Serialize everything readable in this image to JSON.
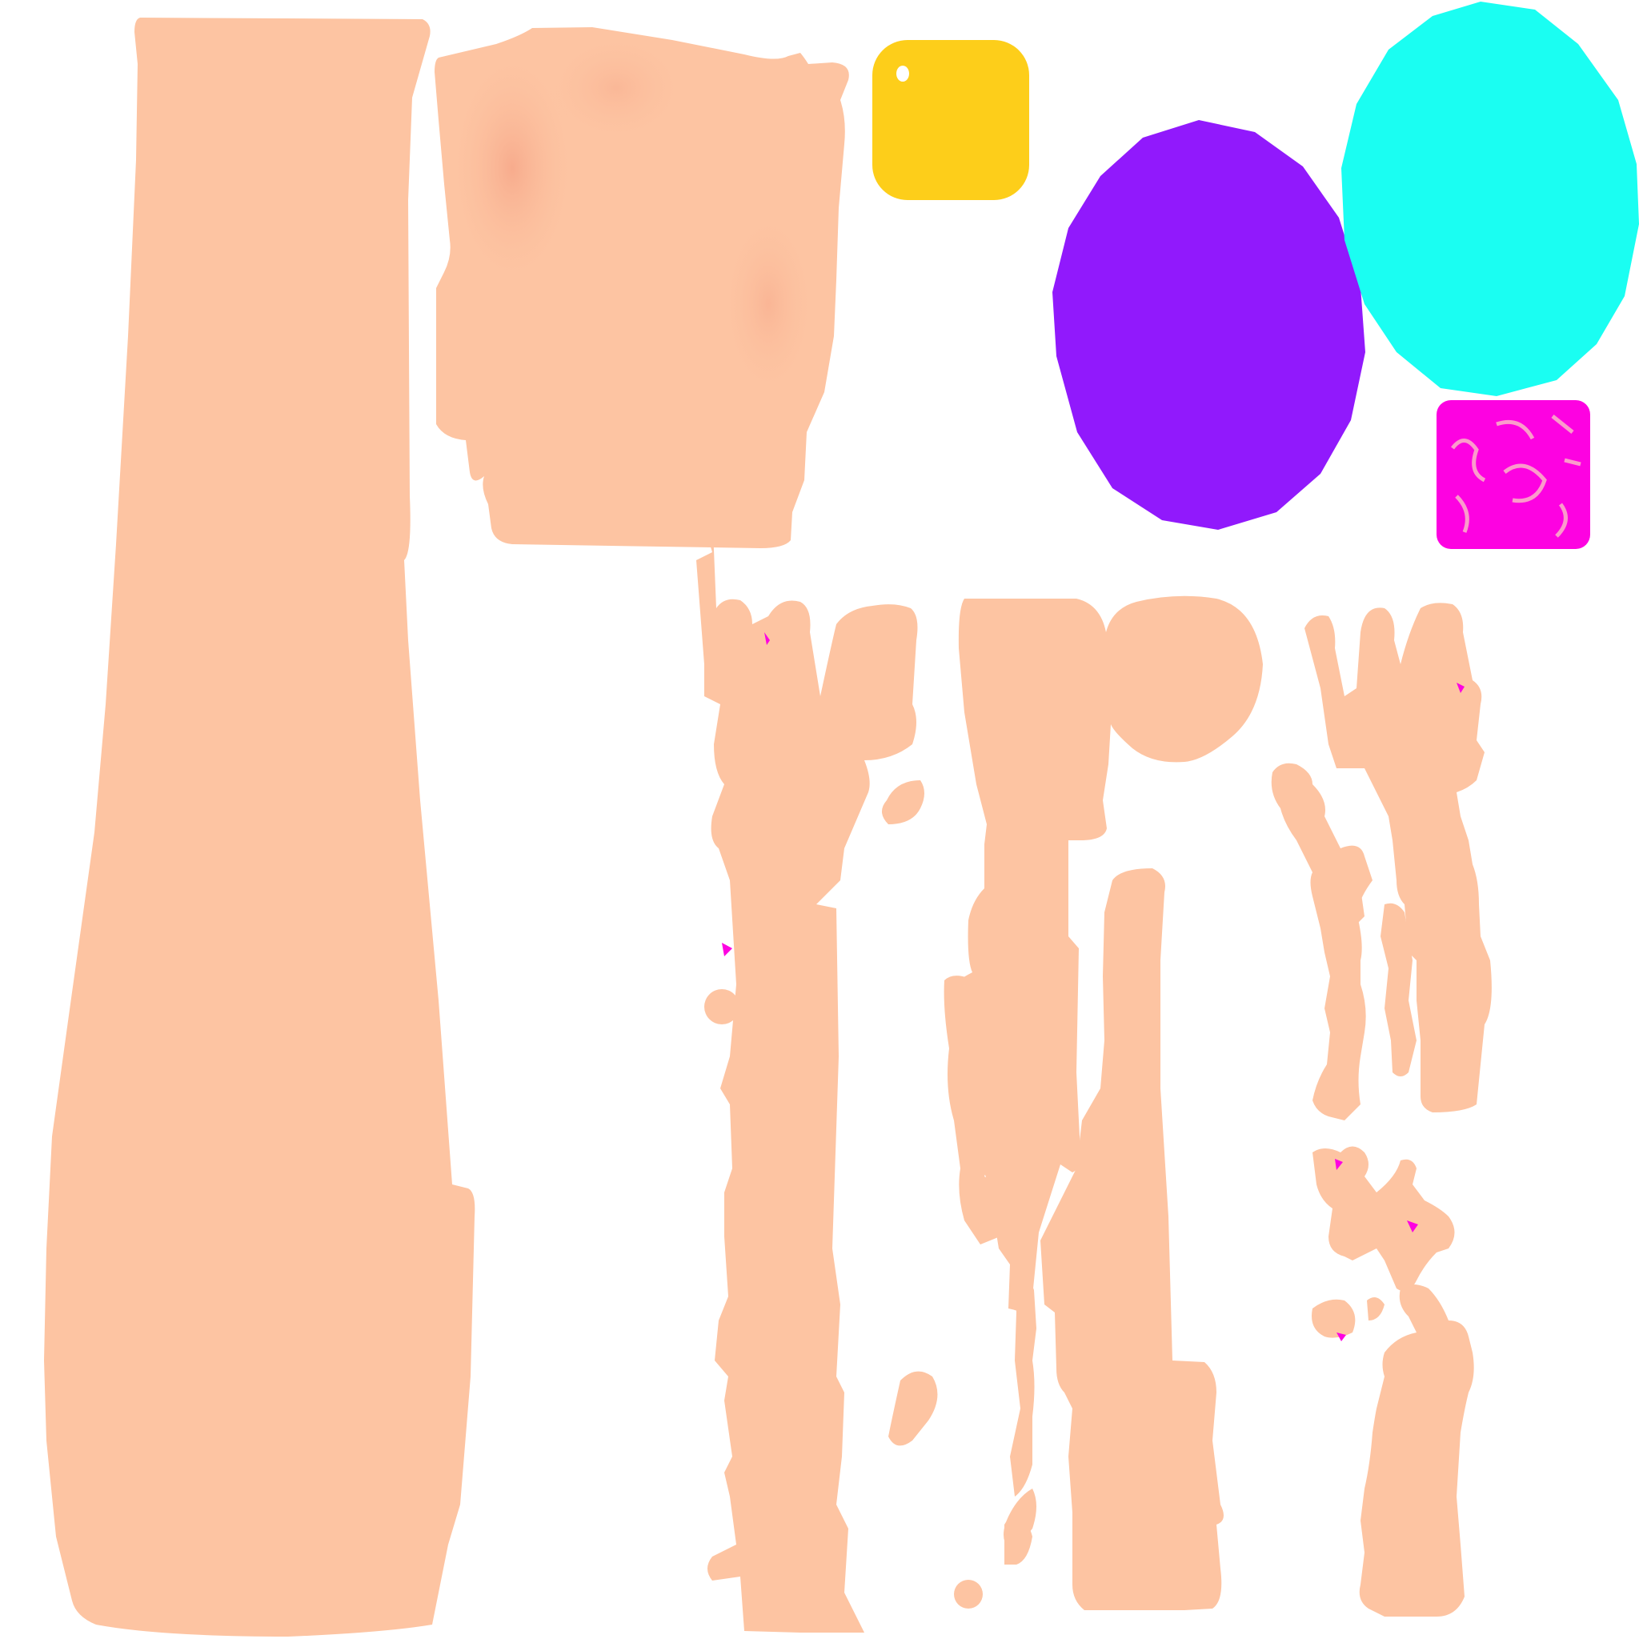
{
  "texture_atlas": {
    "colors": {
      "background": "#ffffff",
      "skin": "#fdc4a2",
      "skin_blush": "#f7ad8f",
      "skin_shadow": "#f5b596",
      "yellow": "#fdce1a",
      "purple": "#9119fc",
      "cyan": "#1afef2",
      "magenta": "#fd02e1"
    }
  }
}
